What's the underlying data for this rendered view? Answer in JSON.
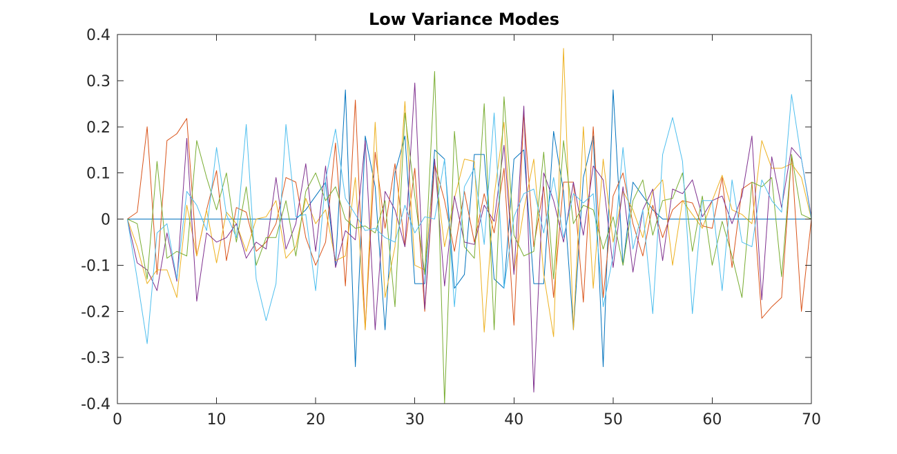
{
  "chart_data": {
    "type": "line",
    "title": "Low Variance Modes",
    "xlabel": "",
    "ylabel": "",
    "xlim": [
      0,
      70
    ],
    "ylim": [
      -0.4,
      0.4
    ],
    "xticks": [
      0,
      10,
      20,
      30,
      40,
      50,
      60,
      70
    ],
    "yticks": [
      -0.4,
      -0.3,
      -0.2,
      -0.1,
      0,
      0.1,
      0.2,
      0.3,
      0.4
    ],
    "xtick_labels": [
      "0",
      "10",
      "20",
      "30",
      "40",
      "50",
      "60",
      "70"
    ],
    "ytick_labels": [
      "-0.4",
      "-0.3",
      "-0.2",
      "-0.1",
      "0",
      "0.1",
      "0.2",
      "0.3",
      "0.4"
    ],
    "grid": false,
    "x": [
      1,
      2,
      3,
      4,
      5,
      6,
      7,
      8,
      9,
      10,
      11,
      12,
      13,
      14,
      15,
      16,
      17,
      18,
      19,
      20,
      21,
      22,
      23,
      24,
      25,
      26,
      27,
      28,
      29,
      30,
      31,
      32,
      33,
      34,
      35,
      36,
      37,
      38,
      39,
      40,
      41,
      42,
      43,
      44,
      45,
      46,
      47,
      48,
      49,
      50,
      51,
      52,
      53,
      54,
      55,
      56,
      57,
      58,
      59,
      60,
      61,
      62,
      63,
      64,
      65,
      66,
      67,
      68,
      69,
      70
    ],
    "series": [
      {
        "color": "#0072BD",
        "values": [
          0,
          0,
          0,
          0,
          0,
          0,
          0,
          0,
          0,
          0,
          0,
          0,
          0,
          0,
          0,
          0,
          0,
          0,
          0.02,
          0.05,
          0.08,
          -0.1,
          0.28,
          -0.32,
          0.18,
          0.07,
          -0.24,
          0.1,
          0.18,
          -0.14,
          -0.14,
          0.15,
          0.13,
          -0.15,
          -0.12,
          0.14,
          0.14,
          -0.13,
          -0.15,
          0.13,
          0.15,
          -0.14,
          -0.14,
          0.19,
          0.06,
          -0.24,
          0.09,
          0.18,
          -0.32,
          0.28,
          -0.1,
          0.08,
          0.05,
          0.02,
          0,
          0,
          0,
          0,
          0,
          0,
          0,
          0,
          0,
          0,
          0,
          0,
          0,
          0,
          0,
          0
        ]
      },
      {
        "color": "#D95319",
        "values": [
          0,
          0.015,
          0.2,
          -0.12,
          0.17,
          0.185,
          0.218,
          -0.08,
          0.02,
          0.105,
          -0.09,
          0.025,
          0.015,
          -0.07,
          -0.05,
          -0.01,
          0.09,
          0.08,
          -0.04,
          -0.1,
          -0.05,
          0.165,
          -0.145,
          0.258,
          -0.24,
          0.145,
          -0.02,
          0.12,
          -0.06,
          0.11,
          -0.2,
          0.12,
          0.04,
          -0.07,
          0.06,
          -0.05,
          0.055,
          -0.03,
          0.11,
          -0.23,
          0.23,
          -0.06,
          0.07,
          -0.17,
          0.08,
          0.08,
          -0.18,
          0.2,
          -0.17,
          0.05,
          0.1,
          -0.01,
          -0.08,
          0.03,
          -0.04,
          0.02,
          0.04,
          0.035,
          -0.015,
          -0.02,
          0.09,
          -0.105,
          0.065,
          0.08,
          -0.215,
          -0.19,
          -0.17,
          0.14,
          -0.2,
          0
        ]
      },
      {
        "color": "#EDB120",
        "values": [
          0,
          -0.06,
          -0.14,
          -0.11,
          -0.11,
          -0.17,
          0.03,
          -0.08,
          0.02,
          -0.095,
          0.015,
          -0.01,
          -0.07,
          0,
          0.005,
          0.04,
          -0.085,
          -0.06,
          0.045,
          -0.01,
          0.02,
          -0.09,
          -0.08,
          0.09,
          -0.24,
          0.21,
          -0.17,
          -0.06,
          0.255,
          -0.1,
          -0.11,
          0.12,
          -0.06,
          0.045,
          0.13,
          0.125,
          -0.245,
          0.05,
          0.21,
          -0.115,
          0.02,
          0.13,
          -0.12,
          -0.255,
          0.37,
          -0.24,
          0.2,
          -0.15,
          0.13,
          -0.05,
          0.06,
          0.02,
          -0.04,
          0.06,
          0.085,
          -0.1,
          0.04,
          0.01,
          -0.02,
          0.04,
          0.095,
          0.02,
          0.01,
          -0.01,
          0.17,
          0.11,
          0.11,
          0.12,
          0.09,
          0
        ]
      },
      {
        "color": "#7E2F8E",
        "values": [
          0,
          -0.095,
          -0.11,
          -0.155,
          -0.03,
          -0.135,
          0.175,
          -0.178,
          -0.03,
          -0.05,
          -0.04,
          -0.01,
          -0.085,
          -0.05,
          -0.065,
          0.09,
          -0.065,
          -0.01,
          0.12,
          -0.07,
          0.115,
          -0.105,
          -0.025,
          -0.045,
          0.17,
          -0.24,
          0.06,
          0.02,
          -0.06,
          0.295,
          -0.195,
          0.13,
          -0.145,
          0.05,
          -0.05,
          -0.055,
          0.03,
          -0.005,
          0.16,
          -0.12,
          0.245,
          -0.375,
          0.1,
          0.04,
          -0.05,
          0.08,
          -0.035,
          0.115,
          0.085,
          -0.105,
          0.07,
          -0.115,
          0.02,
          0.065,
          -0.09,
          0.065,
          0.055,
          0.085,
          0.005,
          0.04,
          0.05,
          -0.01,
          0.05,
          0.18,
          -0.175,
          0.135,
          0.025,
          0.155,
          0.13,
          0.005
        ]
      },
      {
        "color": "#77AC30",
        "values": [
          0,
          -0.01,
          -0.13,
          0.125,
          -0.085,
          -0.07,
          -0.08,
          0.17,
          0.09,
          0.02,
          0.1,
          -0.05,
          0.07,
          -0.1,
          -0.04,
          -0.04,
          0.04,
          -0.08,
          0.06,
          0.1,
          0.04,
          0.07,
          0,
          -0.02,
          -0.015,
          -0.03,
          0.04,
          -0.19,
          0.23,
          0.05,
          -0.12,
          0.32,
          -0.4,
          0.19,
          -0.06,
          -0.085,
          0.25,
          -0.24,
          0.265,
          -0.035,
          -0.08,
          -0.07,
          0.145,
          -0.13,
          0.17,
          -0.01,
          0.03,
          0.02,
          -0.065,
          0.005,
          -0.1,
          0.04,
          0.085,
          -0.035,
          0.04,
          0.045,
          0.1,
          -0.07,
          0.05,
          -0.1,
          -0.005,
          -0.08,
          -0.17,
          0.08,
          0.07,
          0.09,
          -0.125,
          0.14,
          0.01,
          0
        ]
      },
      {
        "color": "#4DBEEE",
        "values": [
          0,
          -0.13,
          -0.27,
          -0.03,
          -0.01,
          -0.13,
          0.06,
          0.03,
          -0.025,
          0.155,
          0.01,
          -0.04,
          0.205,
          -0.13,
          -0.22,
          -0.14,
          0.205,
          0.005,
          0.01,
          -0.155,
          0.085,
          0.195,
          0.045,
          0.01,
          -0.025,
          -0.02,
          -0.04,
          -0.05,
          0.03,
          -0.03,
          0.005,
          0,
          0.13,
          -0.19,
          0.07,
          0.11,
          -0.055,
          0.23,
          -0.15,
          0.005,
          0.055,
          0.065,
          -0.03,
          0.09,
          -0.04,
          0.055,
          0.035,
          0.055,
          -0.19,
          -0.08,
          0.155,
          -0.065,
          0.02,
          -0.205,
          0.14,
          0.22,
          0.125,
          -0.205,
          0.04,
          0.04,
          -0.155,
          0.085,
          -0.05,
          -0.06,
          0.085,
          0.04,
          0.015,
          0.27,
          0.13,
          0
        ]
      }
    ]
  }
}
